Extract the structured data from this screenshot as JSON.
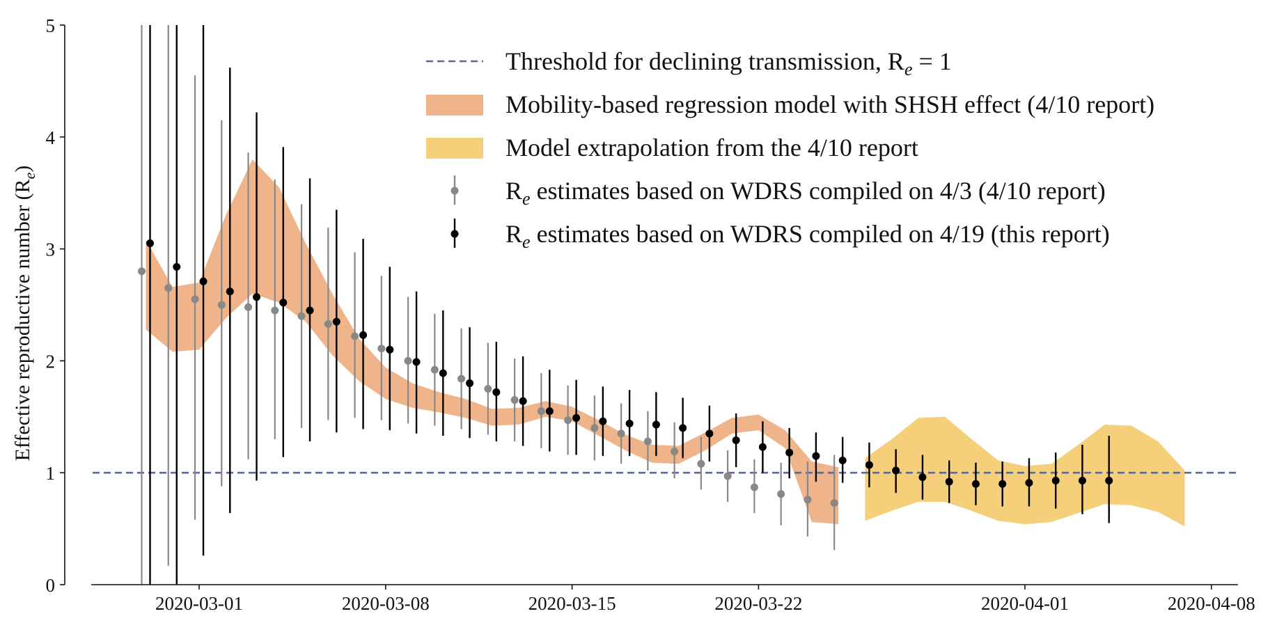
{
  "chart_data": {
    "type": "line",
    "title": "",
    "xlabel": "",
    "ylabel": "Effective reproductive number (Re)",
    "ylim": [
      0,
      5
    ],
    "xlim": [
      "2020-02-26",
      "2020-04-09"
    ],
    "grid": false,
    "legend_position": "top-right",
    "y_ticks": [
      "0",
      "1",
      "2",
      "3",
      "4",
      "5"
    ],
    "x_ticks": [
      "2020-03-01",
      "2020-03-08",
      "2020-03-15",
      "2020-03-22",
      "2020-04-01",
      "2020-04-08"
    ],
    "threshold": {
      "value": 1,
      "color": "#5a6a91",
      "label": "Threshold for declining transmission, Re = 1"
    },
    "legend": [
      {
        "label": "Threshold for declining transmission, R",
        "sub": "e",
        "suffix": " = 1",
        "kind": "dashed-line",
        "color": "#5a6a91"
      },
      {
        "label": "Mobility-based regression model with SHSH effect (4/10 report)",
        "sub": "",
        "suffix": "",
        "kind": "band",
        "color": "#f0b48a"
      },
      {
        "label": "Model extrapolation from the 4/10 report",
        "sub": "",
        "suffix": "",
        "kind": "band",
        "color": "#f5cf7a"
      },
      {
        "label": "R",
        "sub": "e",
        "suffix": " estimates based on WDRS compiled on 4/3 (4/10 report)",
        "kind": "errorbar",
        "color": "#888888"
      },
      {
        "label": "R",
        "sub": "e",
        "suffix": " estimates based on WDRS compiled on 4/19 (this report)",
        "kind": "errorbar",
        "color": "#000000"
      }
    ],
    "bands": [
      {
        "name": "Mobility-based regression model with SHSH effect (4/10 report)",
        "color": "#f0b48a",
        "points": [
          {
            "day": "2020-02-28",
            "lo": 2.28,
            "hi": 3.08
          },
          {
            "day": "2020-02-29",
            "lo": 2.08,
            "hi": 2.66
          },
          {
            "day": "2020-03-01",
            "lo": 2.1,
            "hi": 2.7
          },
          {
            "day": "2020-03-02",
            "lo": 2.38,
            "hi": 3.3
          },
          {
            "day": "2020-03-03",
            "lo": 2.6,
            "hi": 3.8
          },
          {
            "day": "2020-03-04",
            "lo": 2.52,
            "hi": 3.55
          },
          {
            "day": "2020-03-05",
            "lo": 2.35,
            "hi": 3.05
          },
          {
            "day": "2020-03-06",
            "lo": 2.05,
            "hi": 2.6
          },
          {
            "day": "2020-03-07",
            "lo": 1.82,
            "hi": 2.2
          },
          {
            "day": "2020-03-08",
            "lo": 1.66,
            "hi": 1.94
          },
          {
            "day": "2020-03-09",
            "lo": 1.58,
            "hi": 1.8
          },
          {
            "day": "2020-03-10",
            "lo": 1.54,
            "hi": 1.72
          },
          {
            "day": "2020-03-11",
            "lo": 1.49,
            "hi": 1.66
          },
          {
            "day": "2020-03-12",
            "lo": 1.42,
            "hi": 1.57
          },
          {
            "day": "2020-03-13",
            "lo": 1.43,
            "hi": 1.58
          },
          {
            "day": "2020-03-14",
            "lo": 1.5,
            "hi": 1.64
          },
          {
            "day": "2020-03-15",
            "lo": 1.46,
            "hi": 1.59
          },
          {
            "day": "2020-03-16",
            "lo": 1.33,
            "hi": 1.47
          },
          {
            "day": "2020-03-17",
            "lo": 1.2,
            "hi": 1.34
          },
          {
            "day": "2020-03-18",
            "lo": 1.09,
            "hi": 1.25
          },
          {
            "day": "2020-03-19",
            "lo": 1.08,
            "hi": 1.24
          },
          {
            "day": "2020-03-20",
            "lo": 1.2,
            "hi": 1.36
          },
          {
            "day": "2020-03-21",
            "lo": 1.35,
            "hi": 1.49
          },
          {
            "day": "2020-03-22",
            "lo": 1.38,
            "hi": 1.52
          },
          {
            "day": "2020-03-23",
            "lo": 1.22,
            "hi": 1.38
          },
          {
            "day": "2020-03-24",
            "lo": 0.56,
            "hi": 1.1
          },
          {
            "day": "2020-03-25",
            "lo": 0.54,
            "hi": 1.05
          }
        ]
      },
      {
        "name": "Model extrapolation from the 4/10 report",
        "color": "#f5cf7a",
        "points": [
          {
            "day": "2020-03-26",
            "lo": 0.57,
            "hi": 1.13
          },
          {
            "day": "2020-03-27",
            "lo": 0.66,
            "hi": 1.3
          },
          {
            "day": "2020-03-28",
            "lo": 0.74,
            "hi": 1.49
          },
          {
            "day": "2020-03-29",
            "lo": 0.74,
            "hi": 1.5
          },
          {
            "day": "2020-03-30",
            "lo": 0.66,
            "hi": 1.3
          },
          {
            "day": "2020-03-31",
            "lo": 0.57,
            "hi": 1.11
          },
          {
            "day": "2020-04-01",
            "lo": 0.54,
            "hi": 1.06
          },
          {
            "day": "2020-04-02",
            "lo": 0.56,
            "hi": 1.08
          },
          {
            "day": "2020-04-03",
            "lo": 0.64,
            "hi": 1.25
          },
          {
            "day": "2020-04-04",
            "lo": 0.72,
            "hi": 1.43
          },
          {
            "day": "2020-04-05",
            "lo": 0.71,
            "hi": 1.42
          },
          {
            "day": "2020-04-06",
            "lo": 0.65,
            "hi": 1.28
          },
          {
            "day": "2020-04-07",
            "lo": 0.52,
            "hi": 1.02
          }
        ]
      }
    ],
    "series": [
      {
        "name": "Re estimates based on WDRS compiled on 4/3 (4/10 report)",
        "color": "#888888",
        "points": [
          {
            "day": "2020-02-28",
            "y": 2.8,
            "lo": 0.0,
            "hi": 5.0
          },
          {
            "day": "2020-02-29",
            "y": 2.65,
            "lo": 0.17,
            "hi": 5.0
          },
          {
            "day": "2020-03-01",
            "y": 2.55,
            "lo": 0.58,
            "hi": 4.55
          },
          {
            "day": "2020-03-02",
            "y": 2.5,
            "lo": 0.88,
            "hi": 4.15
          },
          {
            "day": "2020-03-03",
            "y": 2.48,
            "lo": 1.12,
            "hi": 3.86
          },
          {
            "day": "2020-03-04",
            "y": 2.45,
            "lo": 1.3,
            "hi": 3.62
          },
          {
            "day": "2020-03-05",
            "y": 2.4,
            "lo": 1.4,
            "hi": 3.4
          },
          {
            "day": "2020-03-06",
            "y": 2.33,
            "lo": 1.47,
            "hi": 3.19
          },
          {
            "day": "2020-03-07",
            "y": 2.22,
            "lo": 1.49,
            "hi": 2.97
          },
          {
            "day": "2020-03-08",
            "y": 2.11,
            "lo": 1.47,
            "hi": 2.76
          },
          {
            "day": "2020-03-09",
            "y": 2.0,
            "lo": 1.44,
            "hi": 2.57
          },
          {
            "day": "2020-03-10",
            "y": 1.92,
            "lo": 1.42,
            "hi": 2.42
          },
          {
            "day": "2020-03-11",
            "y": 1.84,
            "lo": 1.39,
            "hi": 2.29
          },
          {
            "day": "2020-03-12",
            "y": 1.75,
            "lo": 1.34,
            "hi": 2.16
          },
          {
            "day": "2020-03-13",
            "y": 1.65,
            "lo": 1.28,
            "hi": 2.02
          },
          {
            "day": "2020-03-14",
            "y": 1.55,
            "lo": 1.22,
            "hi": 1.89
          },
          {
            "day": "2020-03-15",
            "y": 1.47,
            "lo": 1.16,
            "hi": 1.78
          },
          {
            "day": "2020-03-16",
            "y": 1.4,
            "lo": 1.11,
            "hi": 1.69
          },
          {
            "day": "2020-03-17",
            "y": 1.35,
            "lo": 1.08,
            "hi": 1.62
          },
          {
            "day": "2020-03-18",
            "y": 1.28,
            "lo": 1.02,
            "hi": 1.55
          },
          {
            "day": "2020-03-19",
            "y": 1.19,
            "lo": 0.95,
            "hi": 1.45
          },
          {
            "day": "2020-03-20",
            "y": 1.08,
            "lo": 0.85,
            "hi": 1.32
          },
          {
            "day": "2020-03-21",
            "y": 0.97,
            "lo": 0.74,
            "hi": 1.2
          },
          {
            "day": "2020-03-22",
            "y": 0.87,
            "lo": 0.64,
            "hi": 1.12
          },
          {
            "day": "2020-03-23",
            "y": 0.81,
            "lo": 0.53,
            "hi": 1.09
          },
          {
            "day": "2020-03-24",
            "y": 0.76,
            "lo": 0.43,
            "hi": 1.1
          },
          {
            "day": "2020-03-25",
            "y": 0.73,
            "lo": 0.31,
            "hi": 1.16
          }
        ]
      },
      {
        "name": "Re estimates based on WDRS compiled on 4/19 (this report)",
        "color": "#000000",
        "points": [
          {
            "day": "2020-02-28",
            "y": 3.05,
            "lo": 0.0,
            "hi": 5.0
          },
          {
            "day": "2020-02-29",
            "y": 2.84,
            "lo": 0.0,
            "hi": 5.0
          },
          {
            "day": "2020-03-01",
            "y": 2.71,
            "lo": 0.26,
            "hi": 5.0
          },
          {
            "day": "2020-03-02",
            "y": 2.62,
            "lo": 0.64,
            "hi": 4.62
          },
          {
            "day": "2020-03-03",
            "y": 2.57,
            "lo": 0.93,
            "hi": 4.22
          },
          {
            "day": "2020-03-04",
            "y": 2.52,
            "lo": 1.14,
            "hi": 3.91
          },
          {
            "day": "2020-03-05",
            "y": 2.45,
            "lo": 1.28,
            "hi": 3.63
          },
          {
            "day": "2020-03-06",
            "y": 2.35,
            "lo": 1.36,
            "hi": 3.35
          },
          {
            "day": "2020-03-07",
            "y": 2.23,
            "lo": 1.39,
            "hi": 3.09
          },
          {
            "day": "2020-03-08",
            "y": 2.1,
            "lo": 1.38,
            "hi": 2.84
          },
          {
            "day": "2020-03-09",
            "y": 1.99,
            "lo": 1.35,
            "hi": 2.62
          },
          {
            "day": "2020-03-10",
            "y": 1.89,
            "lo": 1.33,
            "hi": 2.45
          },
          {
            "day": "2020-03-11",
            "y": 1.8,
            "lo": 1.31,
            "hi": 2.3
          },
          {
            "day": "2020-03-12",
            "y": 1.72,
            "lo": 1.28,
            "hi": 2.17
          },
          {
            "day": "2020-03-13",
            "y": 1.64,
            "lo": 1.24,
            "hi": 2.04
          },
          {
            "day": "2020-03-14",
            "y": 1.55,
            "lo": 1.19,
            "hi": 1.92
          },
          {
            "day": "2020-03-15",
            "y": 1.49,
            "lo": 1.16,
            "hi": 1.83
          },
          {
            "day": "2020-03-16",
            "y": 1.46,
            "lo": 1.15,
            "hi": 1.77
          },
          {
            "day": "2020-03-17",
            "y": 1.44,
            "lo": 1.15,
            "hi": 1.74
          },
          {
            "day": "2020-03-18",
            "y": 1.43,
            "lo": 1.15,
            "hi": 1.72
          },
          {
            "day": "2020-03-19",
            "y": 1.4,
            "lo": 1.13,
            "hi": 1.67
          },
          {
            "day": "2020-03-20",
            "y": 1.35,
            "lo": 1.1,
            "hi": 1.6
          },
          {
            "day": "2020-03-21",
            "y": 1.29,
            "lo": 1.05,
            "hi": 1.53
          },
          {
            "day": "2020-03-22",
            "y": 1.23,
            "lo": 1.0,
            "hi": 1.46
          },
          {
            "day": "2020-03-23",
            "y": 1.18,
            "lo": 0.95,
            "hi": 1.4
          },
          {
            "day": "2020-03-24",
            "y": 1.15,
            "lo": 0.92,
            "hi": 1.36
          },
          {
            "day": "2020-03-25",
            "y": 1.11,
            "lo": 0.91,
            "hi": 1.32
          },
          {
            "day": "2020-03-26",
            "y": 1.07,
            "lo": 0.87,
            "hi": 1.27
          },
          {
            "day": "2020-03-27",
            "y": 1.02,
            "lo": 0.82,
            "hi": 1.21
          },
          {
            "day": "2020-03-28",
            "y": 0.96,
            "lo": 0.76,
            "hi": 1.16
          },
          {
            "day": "2020-03-29",
            "y": 0.92,
            "lo": 0.73,
            "hi": 1.11
          },
          {
            "day": "2020-03-30",
            "y": 0.9,
            "lo": 0.71,
            "hi": 1.09
          },
          {
            "day": "2020-03-31",
            "y": 0.9,
            "lo": 0.7,
            "hi": 1.1
          },
          {
            "day": "2020-04-01",
            "y": 0.91,
            "lo": 0.7,
            "hi": 1.13
          },
          {
            "day": "2020-04-02",
            "y": 0.93,
            "lo": 0.68,
            "hi": 1.18
          },
          {
            "day": "2020-04-03",
            "y": 0.93,
            "lo": 0.63,
            "hi": 1.25
          },
          {
            "day": "2020-04-04",
            "y": 0.93,
            "lo": 0.55,
            "hi": 1.33
          }
        ]
      }
    ]
  }
}
